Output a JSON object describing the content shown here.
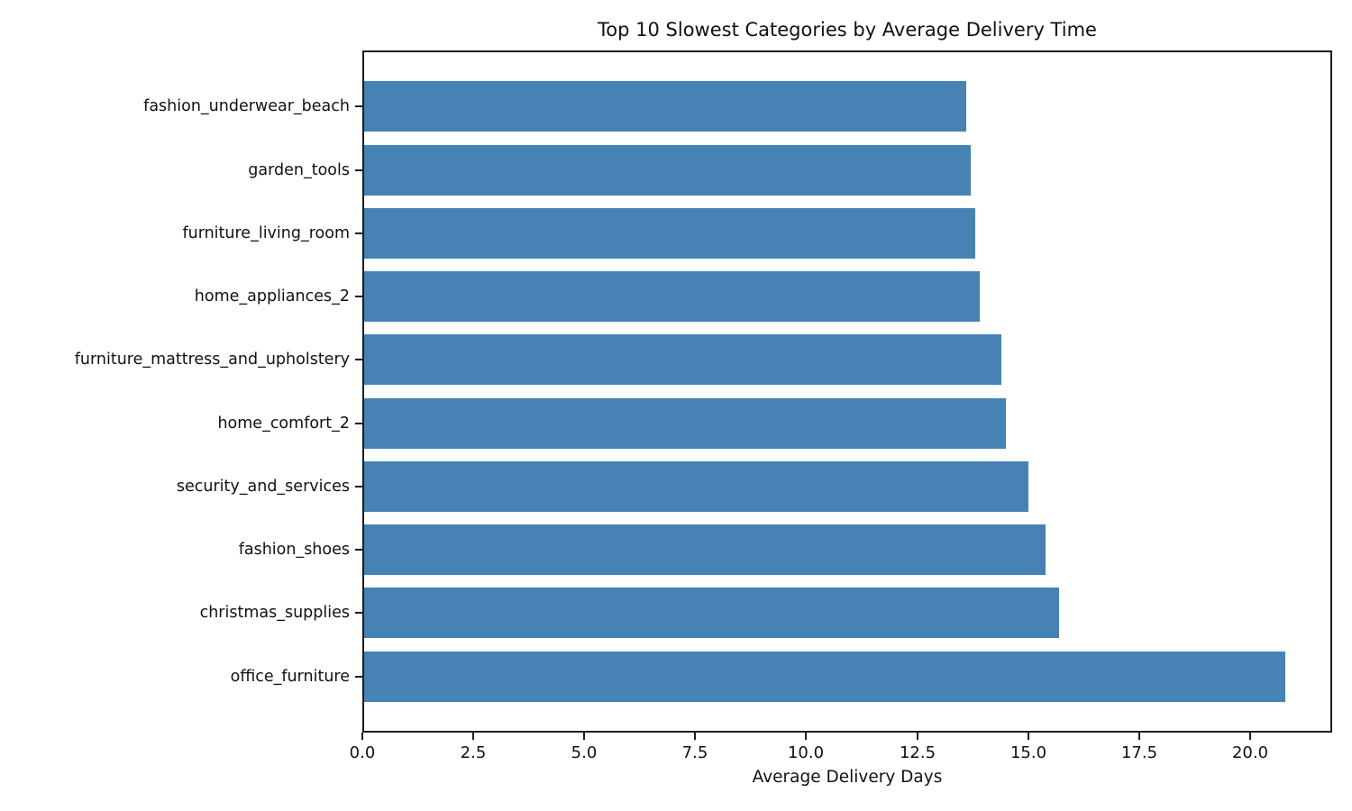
{
  "chart_data": {
    "type": "bar",
    "orientation": "horizontal",
    "title": "Top 10 Slowest Categories by Average Delivery Time",
    "xlabel": "Average Delivery Days",
    "ylabel": "",
    "categories": [
      "fashion_underwear_beach",
      "garden_tools",
      "furniture_living_room",
      "home_appliances_2",
      "furniture_mattress_and_upholstery",
      "home_comfort_2",
      "security_and_services",
      "fashion_shoes",
      "christmas_supplies",
      "office_furniture"
    ],
    "values": [
      13.6,
      13.7,
      13.8,
      13.9,
      14.4,
      14.5,
      15.0,
      15.4,
      15.7,
      20.8
    ],
    "xlim": [
      0,
      21.85
    ],
    "x_ticks": [
      0,
      2.5,
      5,
      7.5,
      10,
      12.5,
      15,
      17.5,
      20
    ],
    "x_tick_labels": [
      "0.0",
      "2.5",
      "5.0",
      "7.5",
      "10.0",
      "12.5",
      "15.0",
      "17.5",
      "20.0"
    ],
    "bar_color": "#4682B4",
    "grid": false,
    "legend": null
  }
}
